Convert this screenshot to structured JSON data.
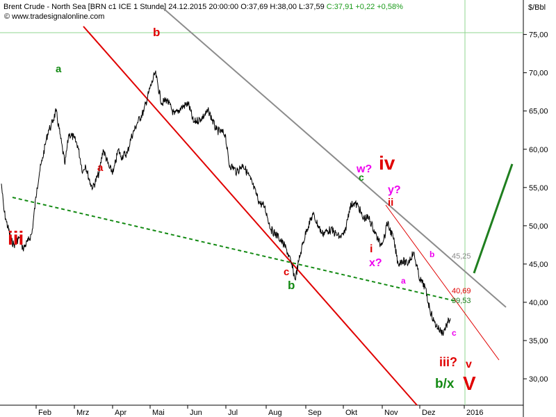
{
  "header": {
    "instrument": "Brent Crude - North Sea [BRN c1 ICE  1 Stunde]",
    "datetime": "24.12.2015 20:00:00",
    "ohlc": "O:37,69 H:38,00 L:37,59",
    "close_change": "C:37,91 +0,22 +0,58%",
    "source": "© www.tradesignalonline.com",
    "unit": "$/Bbl"
  },
  "chart_data": {
    "type": "line",
    "series": [
      {
        "x": [
          "2015-01-05",
          "2015-01-07",
          "2015-01-09",
          "2015-01-13",
          "2015-01-15",
          "2015-01-19",
          "2015-01-22",
          "2015-01-26",
          "2015-01-29",
          "2015-02-02",
          "2015-02-04",
          "2015-02-06",
          "2015-02-09",
          "2015-02-11",
          "2015-02-13",
          "2015-02-17",
          "2015-02-20",
          "2015-02-24",
          "2015-02-27",
          "2015-03-03",
          "2015-03-06",
          "2015-03-10",
          "2015-03-12",
          "2015-03-16",
          "2015-03-18",
          "2015-03-23",
          "2015-03-26",
          "2015-03-31",
          "2015-04-03",
          "2015-04-07",
          "2015-04-09",
          "2015-04-14",
          "2015-04-17",
          "2015-04-22",
          "2015-04-27",
          "2015-05-01",
          "2015-05-06",
          "2015-05-11",
          "2015-05-15",
          "2015-05-21",
          "2015-05-27",
          "2015-06-01",
          "2015-06-05",
          "2015-06-11",
          "2015-06-17",
          "2015-06-23",
          "2015-06-30",
          "2015-07-03",
          "2015-07-07",
          "2015-07-09",
          "2015-07-14",
          "2015-07-20",
          "2015-07-27",
          "2015-07-31",
          "2015-08-05",
          "2015-08-11",
          "2015-08-17",
          "2015-08-21",
          "2015-08-24",
          "2015-08-27",
          "2015-08-29",
          "2015-09-02",
          "2015-09-07",
          "2015-09-14",
          "2015-09-21",
          "2015-09-28",
          "2015-10-02",
          "2015-10-06",
          "2015-10-09",
          "2015-10-13",
          "2015-10-16",
          "2015-10-21",
          "2015-10-26",
          "2015-10-30",
          "2015-11-03",
          "2015-11-04",
          "2015-11-09",
          "2015-11-13",
          "2015-11-16",
          "2015-11-20",
          "2015-11-25",
          "2015-11-30",
          "2015-12-04",
          "2015-12-08",
          "2015-12-11",
          "2015-12-15",
          "2015-12-18",
          "2015-12-21",
          "2015-12-24"
        ],
        "y": [
          55.5,
          52.0,
          50.5,
          48.0,
          47.5,
          48.5,
          47.0,
          48.0,
          49.0,
          55.0,
          57.0,
          58.5,
          61.0,
          62.5,
          63.0,
          65.0,
          62.0,
          58.0,
          62.0,
          61.5,
          60.5,
          57.0,
          58.0,
          55.5,
          55.0,
          57.0,
          60.0,
          57.5,
          57.0,
          60.0,
          59.0,
          59.5,
          61.5,
          63.5,
          65.0,
          67.5,
          70.0,
          66.0,
          66.5,
          64.5,
          65.5,
          66.0,
          63.5,
          64.0,
          65.0,
          62.5,
          62.0,
          58.0,
          57.5,
          57.0,
          58.0,
          56.0,
          53.0,
          52.5,
          49.5,
          48.5,
          47.0,
          45.0,
          43.0,
          45.5,
          47.0,
          49.5,
          51.5,
          49.0,
          49.5,
          48.5,
          49.0,
          52.5,
          53.0,
          52.5,
          51.0,
          51.0,
          49.0,
          47.5,
          49.0,
          50.5,
          48.5,
          45.0,
          45.5,
          45.0,
          46.5,
          43.0,
          42.0,
          39.0,
          37.5,
          36.5,
          36.0,
          37.0,
          37.9
        ]
      }
    ],
    "ylim": [
      27.5,
      79.0
    ],
    "yticks": [
      "30,00",
      "35,00",
      "40,00",
      "45,00",
      "50,00",
      "55,00",
      "60,00",
      "65,00",
      "70,00",
      "75,00"
    ],
    "xticks": [
      "Feb",
      "Mrz",
      "Apr",
      "Mai",
      "Jun",
      "Jul",
      "Aug",
      "Sep",
      "Okt",
      "Nov",
      "Dez",
      "2016"
    ],
    "price_labels": [
      "45,25",
      "40,69",
      "39,53"
    ],
    "annotations": [
      "iii",
      "a",
      "b",
      "a",
      "c",
      "b",
      "w?",
      "c",
      "iv",
      "ii",
      "y?",
      "i",
      "x?",
      "a",
      "b",
      "c",
      "iii?",
      "v",
      "b/x",
      "V"
    ],
    "colors": {
      "price": "#000000",
      "red": "#e00000",
      "green": "#138a13",
      "magenta": "#ee00ee",
      "gray": "#8c8c8c",
      "bright_green": "#1f7f1f"
    }
  }
}
